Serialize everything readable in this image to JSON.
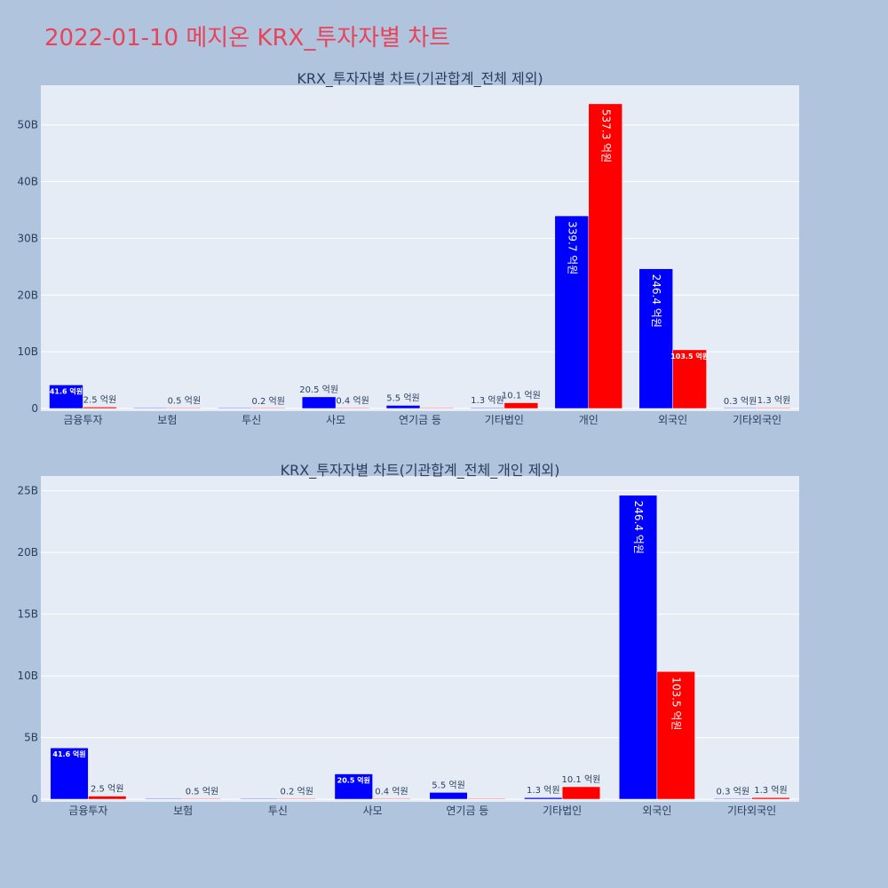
{
  "page": {
    "title": "2022-01-10 메지온 KRX_투자자별 차트"
  },
  "colors": {
    "buy": "#0000ff",
    "sell": "#ff0000",
    "plot_bg": "#e5ecf6",
    "page_bg": "#b0c4de",
    "title": "#e8435a"
  },
  "chart_data": [
    {
      "type": "bar",
      "title": "KRX_투자자별 차트(기관합계_전체 제외)",
      "categories": [
        "금융투자",
        "보험",
        "투신",
        "사모",
        "연기금 등",
        "기타법인",
        "개인",
        "외국인",
        "기타외국인"
      ],
      "series": [
        {
          "values": [
            4.16,
            0.0,
            0.0,
            2.05,
            0.55,
            0.13,
            33.97,
            24.64,
            0.03
          ],
          "labels": [
            "41.6 억원",
            "",
            "",
            "20.5 억원",
            "5.5 억원",
            "1.3 억원",
            "339.7 억원",
            "246.4 억원",
            "0.3 억원"
          ]
        },
        {
          "values": [
            0.25,
            0.05,
            0.02,
            0.04,
            0.0,
            1.01,
            53.73,
            10.35,
            0.13
          ],
          "labels": [
            "2.5 억원",
            "0.5 억원",
            "0.2 억원",
            "0.4 억원",
            "",
            "10.1 억원",
            "537.3 억원",
            "103.5 억원",
            "1.3 억원"
          ]
        }
      ],
      "ylim": [
        0,
        57
      ],
      "yticks": [
        0,
        10,
        20,
        30,
        40,
        50
      ],
      "ytick_labels": [
        "0",
        "10B",
        "20B",
        "30B",
        "40B",
        "50B"
      ],
      "grid": true
    },
    {
      "type": "bar",
      "title": "KRX_투자자별 차트(기관합계_전체_개인 제외)",
      "categories": [
        "금융투자",
        "보험",
        "투신",
        "사모",
        "연기금 등",
        "기타법인",
        "외국인",
        "기타외국인"
      ],
      "series": [
        {
          "values": [
            4.16,
            0.0,
            0.0,
            2.05,
            0.55,
            0.13,
            24.64,
            0.03
          ],
          "labels": [
            "41.6 억원",
            "",
            "",
            "20.5 억원",
            "5.5 억원",
            "1.3 억원",
            "246.4 억원",
            "0.3 억원"
          ]
        },
        {
          "values": [
            0.25,
            0.05,
            0.02,
            0.04,
            0.0,
            1.01,
            10.35,
            0.13
          ],
          "labels": [
            "2.5 억원",
            "0.5 억원",
            "0.2 억원",
            "0.4 억원",
            "",
            "10.1 억원",
            "103.5 억원",
            "1.3 억원"
          ]
        }
      ],
      "ylim": [
        0,
        26.2
      ],
      "yticks": [
        0,
        5,
        10,
        15,
        20,
        25
      ],
      "ytick_labels": [
        "0",
        "5B",
        "10B",
        "15B",
        "20B",
        "25B"
      ],
      "grid": true
    }
  ]
}
